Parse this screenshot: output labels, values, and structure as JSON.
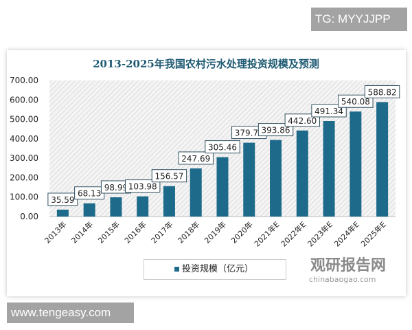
{
  "watermark_top": "TG: MYYJJPP",
  "watermark_bottom": "www.tengeasy.com",
  "logo": {
    "cn": "观研报告网",
    "en": "chinabaogao.com"
  },
  "chart_data": {
    "type": "bar",
    "title": "2013-2025年我国农村污水处理投资规模及预测",
    "categories": [
      "2013年",
      "2014年",
      "2015年",
      "2016年",
      "2017年",
      "2018年",
      "2019年",
      "2020年",
      "2021年E",
      "2022年E",
      "2023年E",
      "2024年E",
      "2025年E"
    ],
    "series": [
      {
        "name": "投资规模（亿元）",
        "values": [
          35.59,
          68.13,
          98.99,
          103.98,
          156.57,
          247.69,
          305.46,
          379.73,
          393.86,
          442.6,
          491.34,
          540.08,
          588.82
        ]
      }
    ],
    "data_labels": [
      "35.59",
      "68.13",
      "98.99",
      "103.98",
      "156.57",
      "247.69",
      "305.46",
      "379.73",
      "393.86",
      "442.60",
      "491.34",
      "540.08",
      "588.82"
    ],
    "yticks": [
      "0.00",
      "100.00",
      "200.00",
      "300.00",
      "400.00",
      "500.00",
      "600.00",
      "700.00"
    ],
    "ylim": [
      0,
      700
    ],
    "legend": "bottom",
    "bar_color": "#1d6a8a",
    "grid": false
  }
}
